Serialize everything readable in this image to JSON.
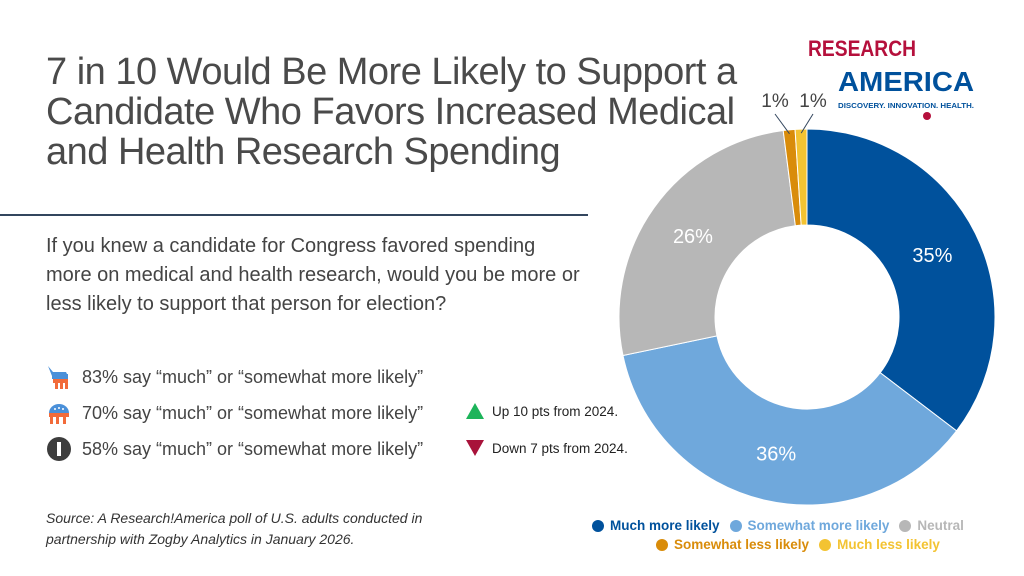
{
  "title": "7 in 10 Would Be More Likely to Support a Candidate Who Favors Increased Medical and Health Research Spending",
  "question": "If you knew a candidate for Congress favored spending more on medical and health research, would you be more or less likely to support that person for election?",
  "stats": [
    {
      "icon": "democrat-donkey-icon",
      "text": "83% say “much” or “somewhat more likely”"
    },
    {
      "icon": "republican-elephant-icon",
      "text": "70% say “much” or “somewhat more likely”",
      "change": "Up 10 pts from 2024.",
      "change_icon": "triangle-up-icon",
      "change_color": "#1db45a"
    },
    {
      "icon": "independent-icon",
      "text": "58% say “much” or “somewhat more likely”",
      "change": "Down 7 pts from 2024.",
      "change_icon": "triangle-down-icon",
      "change_color": "#a8123a"
    }
  ],
  "source": "Source: A Research!America poll of U.S. adults conducted in partnership with Zogby Analytics in January 2026.",
  "logo": {
    "line1": "RESEARCH",
    "line2": "AMERICA",
    "tagline": "DISCOVERY. INNOVATION. HEALTH."
  },
  "chart_data": {
    "type": "donut",
    "categories": [
      "Much more likely",
      "Somewhat more likely",
      "Neutral",
      "Somewhat less likely",
      "Much less likely"
    ],
    "values": [
      35,
      36,
      26,
      1,
      1
    ],
    "labels": [
      "35%",
      "36%",
      "26%",
      "1%",
      "1%"
    ],
    "colors": [
      "#00519c",
      "#6fa8dc",
      "#b7b7b7",
      "#d98c0a",
      "#f3c332"
    ],
    "legend_placement": "bottom"
  }
}
